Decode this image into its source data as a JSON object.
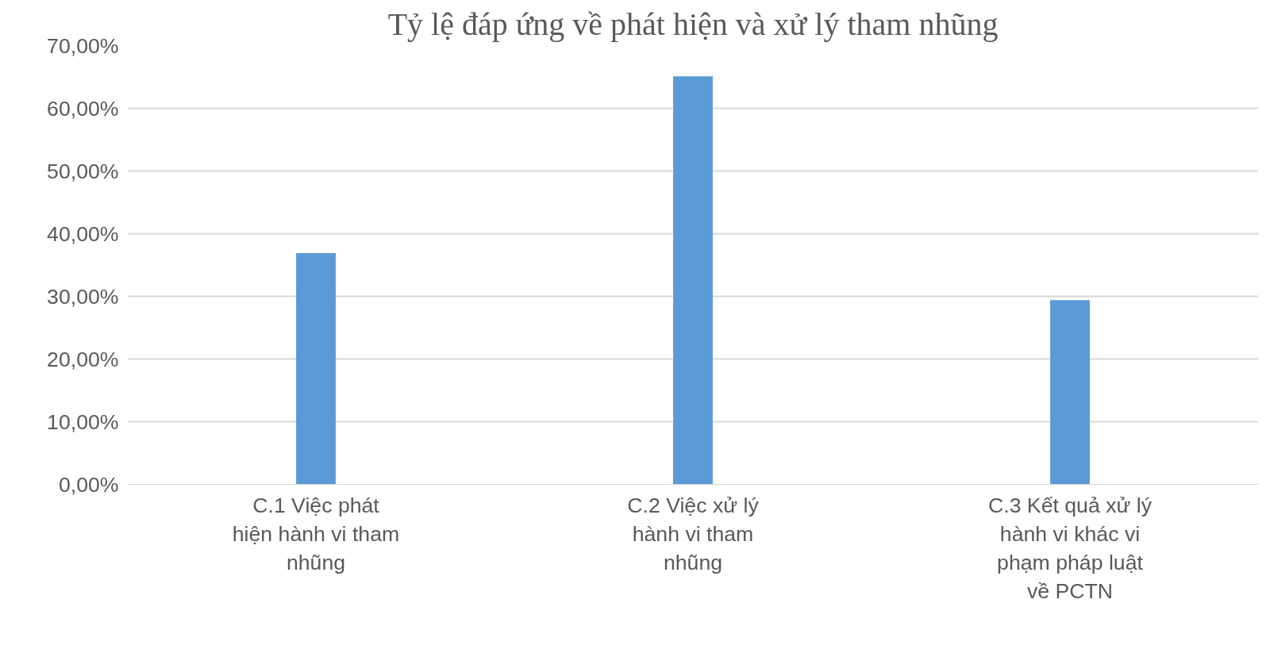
{
  "chart_data": {
    "type": "bar",
    "title": "Tỷ lệ đáp ứng về phát hiện và xử lý tham nhũng",
    "categories": [
      "C.1 Việc phát\nhiện hành vi tham\nnhũng",
      "C.2 Việc xử lý\nhành vi tham\nnhũng",
      "C.3 Kết quả xử lý\nhành vi khác vi\nphạm pháp luật\nvề PCTN"
    ],
    "values": [
      36.9,
      65.1,
      29.4
    ],
    "color": "#5b9bd5",
    "ylim": [
      0,
      70
    ],
    "yticks": [
      {
        "value": 0,
        "label": "0,00%"
      },
      {
        "value": 10,
        "label": "10,00%"
      },
      {
        "value": 20,
        "label": "20,00%"
      },
      {
        "value": 30,
        "label": "30,00%"
      },
      {
        "value": 40,
        "label": "40,00%"
      },
      {
        "value": 50,
        "label": "50,00%"
      },
      {
        "value": 60,
        "label": "60,00%"
      },
      {
        "value": 70,
        "label": "70,00%"
      }
    ],
    "grid": "y"
  }
}
